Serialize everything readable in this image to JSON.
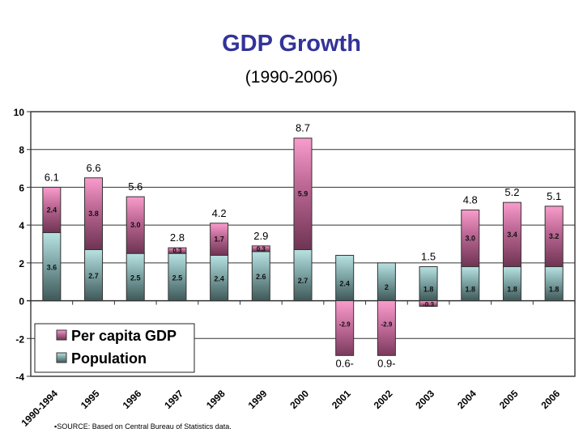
{
  "chart_data": {
    "type": "bar",
    "stacked": true,
    "title": "GDP Growth",
    "subtitle": "(1990-2006)",
    "categories": [
      "1990-1994",
      "1995",
      "1996",
      "1997",
      "1998",
      "1999",
      "2000",
      "2001",
      "2002",
      "2003",
      "2004",
      "2005",
      "2006"
    ],
    "series": [
      {
        "name": "Population",
        "values": [
          3.6,
          2.7,
          2.5,
          2.5,
          2.4,
          2.6,
          2.7,
          2.4,
          2,
          1.8,
          1.8,
          1.8,
          1.8
        ],
        "labels": [
          "3.6",
          "2.7",
          "2.5",
          "2.5",
          "2.4",
          "2.6",
          "2.7",
          "2.4",
          "2",
          "1.8",
          "1.8",
          "1.8",
          "1.8"
        ],
        "color": "#a9d6d6"
      },
      {
        "name": "Per capita GDP",
        "values": [
          2.4,
          3.8,
          3.0,
          0.3,
          1.7,
          0.3,
          5.9,
          -2.9,
          -2.9,
          -0.3,
          3.0,
          3.4,
          3.2
        ],
        "labels": [
          "2.4",
          "3.8",
          "3.0",
          "0.3",
          "1.7",
          "0.3",
          "5.9",
          "-2.9",
          "-2.9",
          "-0.3",
          "3.0",
          "3.4",
          "3.2"
        ],
        "color": "#f49ac8"
      }
    ],
    "totals": [
      "6.1",
      "6.6",
      "5.6",
      "2.8",
      "4.2",
      "2.9",
      "8.7",
      "0.6-",
      "0.9-",
      "1.5",
      "4.8",
      "5.2",
      "5.1"
    ],
    "ylim": [
      -4,
      10
    ],
    "yticks": [
      -4,
      -2,
      0,
      2,
      4,
      6,
      8,
      10
    ],
    "grid": true,
    "legend": {
      "placement": "bottom-left",
      "entries": [
        "Per capita GDP",
        "Population"
      ]
    }
  },
  "footnote": "▪SOURCE: Based on Central Bureau of Statistics data."
}
